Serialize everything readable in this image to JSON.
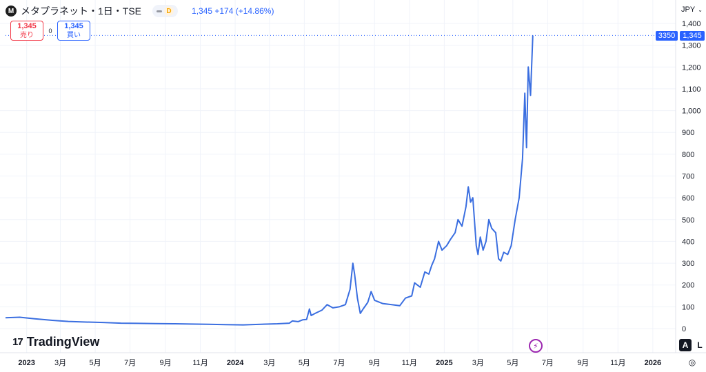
{
  "header": {
    "logo_letter": "M",
    "symbol_title": "メタプラネット・1日・TSE",
    "status_letter": "D",
    "quote": "1,345 +174 (+14.86%)"
  },
  "trade": {
    "sell_value": "1,345",
    "sell_label": "売り",
    "spread": "0",
    "buy_value": "1,345",
    "buy_label": "買い"
  },
  "currency": {
    "label": "JPY",
    "chevron": "⌄"
  },
  "price_tags": {
    "left": "3350",
    "right": "1,345"
  },
  "branding": {
    "mark": "17",
    "name": "TradingView"
  },
  "controls": {
    "auto_label": "A",
    "log_label": "L",
    "flash_glyph": "⚡",
    "settings_glyph": "◎"
  },
  "colors": {
    "line": "#3a6ee0",
    "accent": "#2962ff",
    "sell": "#f23645"
  },
  "chart_data": {
    "type": "line",
    "title": "",
    "xlabel": "",
    "ylabel": "",
    "ylim": [
      0,
      1400
    ],
    "y_ticks": [
      0,
      100,
      200,
      300,
      400,
      500,
      600,
      700,
      800,
      900,
      1000,
      1100,
      1200,
      1300,
      1400
    ],
    "y_tick_labels": [
      "0",
      "100",
      "200",
      "300",
      "400",
      "500",
      "600",
      "700",
      "800",
      "900",
      "1,000",
      "1,100",
      "1,200",
      "1,300",
      "1,400"
    ],
    "x_range": [
      "2022-11-25",
      "2026-02-10"
    ],
    "x_ticks": [
      {
        "date": "2023-01-01",
        "label": "2023",
        "bold": true
      },
      {
        "date": "2023-03-01",
        "label": "3月"
      },
      {
        "date": "2023-05-01",
        "label": "5月"
      },
      {
        "date": "2023-07-01",
        "label": "7月"
      },
      {
        "date": "2023-09-01",
        "label": "9月"
      },
      {
        "date": "2023-11-01",
        "label": "11月"
      },
      {
        "date": "2024-01-01",
        "label": "2024",
        "bold": true
      },
      {
        "date": "2024-03-01",
        "label": "3月"
      },
      {
        "date": "2024-05-01",
        "label": "5月"
      },
      {
        "date": "2024-07-01",
        "label": "7月"
      },
      {
        "date": "2024-09-01",
        "label": "9月"
      },
      {
        "date": "2024-11-01",
        "label": "11月"
      },
      {
        "date": "2025-01-01",
        "label": "2025",
        "bold": true
      },
      {
        "date": "2025-03-01",
        "label": "3月"
      },
      {
        "date": "2025-05-01",
        "label": "5月"
      },
      {
        "date": "2025-07-01",
        "label": "7月"
      },
      {
        "date": "2025-09-01",
        "label": "9月"
      },
      {
        "date": "2025-11-01",
        "label": "11月"
      },
      {
        "date": "2026-01-01",
        "label": "2026",
        "bold": true
      }
    ],
    "last_price": 1345,
    "grid": true,
    "series": [
      {
        "points": [
          [
            "2022-11-25",
            50
          ],
          [
            "2022-12-20",
            52
          ],
          [
            "2023-01-15",
            45
          ],
          [
            "2023-02-15",
            38
          ],
          [
            "2023-03-15",
            33
          ],
          [
            "2023-04-15",
            30
          ],
          [
            "2023-05-15",
            28
          ],
          [
            "2023-06-15",
            25
          ],
          [
            "2023-07-15",
            24
          ],
          [
            "2023-08-15",
            23
          ],
          [
            "2023-09-15",
            22
          ],
          [
            "2023-10-15",
            21
          ],
          [
            "2023-11-15",
            20
          ],
          [
            "2023-12-15",
            18
          ],
          [
            "2024-01-15",
            17
          ],
          [
            "2024-02-15",
            20
          ],
          [
            "2024-03-15",
            22
          ],
          [
            "2024-04-05",
            25
          ],
          [
            "2024-04-10",
            35
          ],
          [
            "2024-04-20",
            32
          ],
          [
            "2024-04-28",
            40
          ],
          [
            "2024-05-05",
            42
          ],
          [
            "2024-05-10",
            90
          ],
          [
            "2024-05-13",
            60
          ],
          [
            "2024-05-20",
            70
          ],
          [
            "2024-06-01",
            85
          ],
          [
            "2024-06-10",
            110
          ],
          [
            "2024-06-20",
            95
          ],
          [
            "2024-07-01",
            100
          ],
          [
            "2024-07-12",
            110
          ],
          [
            "2024-07-20",
            180
          ],
          [
            "2024-07-25",
            300
          ],
          [
            "2024-07-28",
            250
          ],
          [
            "2024-08-02",
            140
          ],
          [
            "2024-08-07",
            70
          ],
          [
            "2024-08-12",
            90
          ],
          [
            "2024-08-20",
            120
          ],
          [
            "2024-08-26",
            170
          ],
          [
            "2024-09-01",
            130
          ],
          [
            "2024-09-15",
            115
          ],
          [
            "2024-10-01",
            110
          ],
          [
            "2024-10-15",
            105
          ],
          [
            "2024-10-25",
            140
          ],
          [
            "2024-11-05",
            150
          ],
          [
            "2024-11-10",
            210
          ],
          [
            "2024-11-20",
            190
          ],
          [
            "2024-11-28",
            260
          ],
          [
            "2024-12-05",
            250
          ],
          [
            "2024-12-10",
            290
          ],
          [
            "2024-12-15",
            320
          ],
          [
            "2024-12-22",
            400
          ],
          [
            "2024-12-28",
            360
          ],
          [
            "2025-01-05",
            380
          ],
          [
            "2025-01-12",
            410
          ],
          [
            "2025-01-20",
            440
          ],
          [
            "2025-01-25",
            500
          ],
          [
            "2025-02-01",
            470
          ],
          [
            "2025-02-08",
            560
          ],
          [
            "2025-02-12",
            650
          ],
          [
            "2025-02-16",
            580
          ],
          [
            "2025-02-20",
            600
          ],
          [
            "2025-02-26",
            380
          ],
          [
            "2025-03-01",
            340
          ],
          [
            "2025-03-05",
            420
          ],
          [
            "2025-03-10",
            360
          ],
          [
            "2025-03-15",
            400
          ],
          [
            "2025-03-20",
            500
          ],
          [
            "2025-03-25",
            460
          ],
          [
            "2025-04-01",
            440
          ],
          [
            "2025-04-06",
            320
          ],
          [
            "2025-04-10",
            310
          ],
          [
            "2025-04-15",
            350
          ],
          [
            "2025-04-22",
            340
          ],
          [
            "2025-04-28",
            380
          ],
          [
            "2025-05-05",
            500
          ],
          [
            "2025-05-12",
            600
          ],
          [
            "2025-05-18",
            780
          ],
          [
            "2025-05-22",
            1080
          ],
          [
            "2025-05-25",
            830
          ],
          [
            "2025-05-28",
            1200
          ],
          [
            "2025-06-01",
            1070
          ],
          [
            "2025-06-05",
            1345
          ]
        ]
      }
    ]
  }
}
